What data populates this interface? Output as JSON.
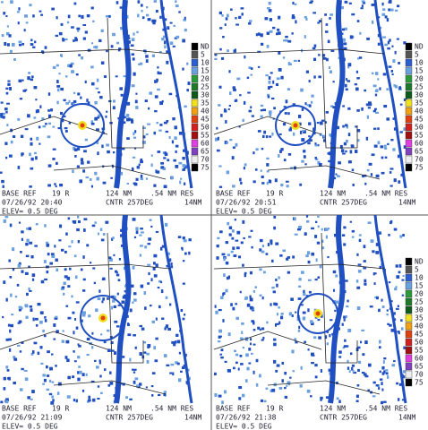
{
  "panels": [
    {
      "line1": {
        "product": "BASE REF",
        "code": "19 R",
        "range": "124 NM",
        "res": ".54 NM RES"
      },
      "line2": {
        "time": "07/26/92 20:40",
        "center": "CNTR 257DEG",
        "dist": "14NM"
      },
      "line3": "ELEV= 0.5 DEG"
    },
    {
      "line1": {
        "product": "BASE REF",
        "code": "19 R",
        "range": "124 NM",
        "res": ".54 NM RES"
      },
      "line2": {
        "time": "07/26/92 20:51",
        "center": "CNTR 257DEG",
        "dist": "14NM"
      },
      "line3": "ELEV= 0.5 DEG"
    },
    {
      "line1": {
        "product": "BASE REF",
        "code": "19 R",
        "range": "124 NM",
        "res": ".54 NM RES"
      },
      "line2": {
        "time": "07/26/92 21:09",
        "center": "CNTR 257DEG",
        "dist": "14NM"
      },
      "line3": "ELEV= 0.5 DEG"
    },
    {
      "line1": {
        "product": "BASE REF",
        "code": "19 R",
        "range": "124 NM",
        "res": ".54 NM RES"
      },
      "line2": {
        "time": "07/26/92 21:38",
        "center": "CNTR 257DEG",
        "dist": "14NM"
      },
      "line3": "ELEV= 0.5 DEG"
    }
  ],
  "legend": [
    "ND",
    "5",
    "10",
    "15",
    "20",
    "25",
    "30",
    "35",
    "40",
    "45",
    "50",
    "55",
    "60",
    "65",
    "70",
    "75"
  ]
}
